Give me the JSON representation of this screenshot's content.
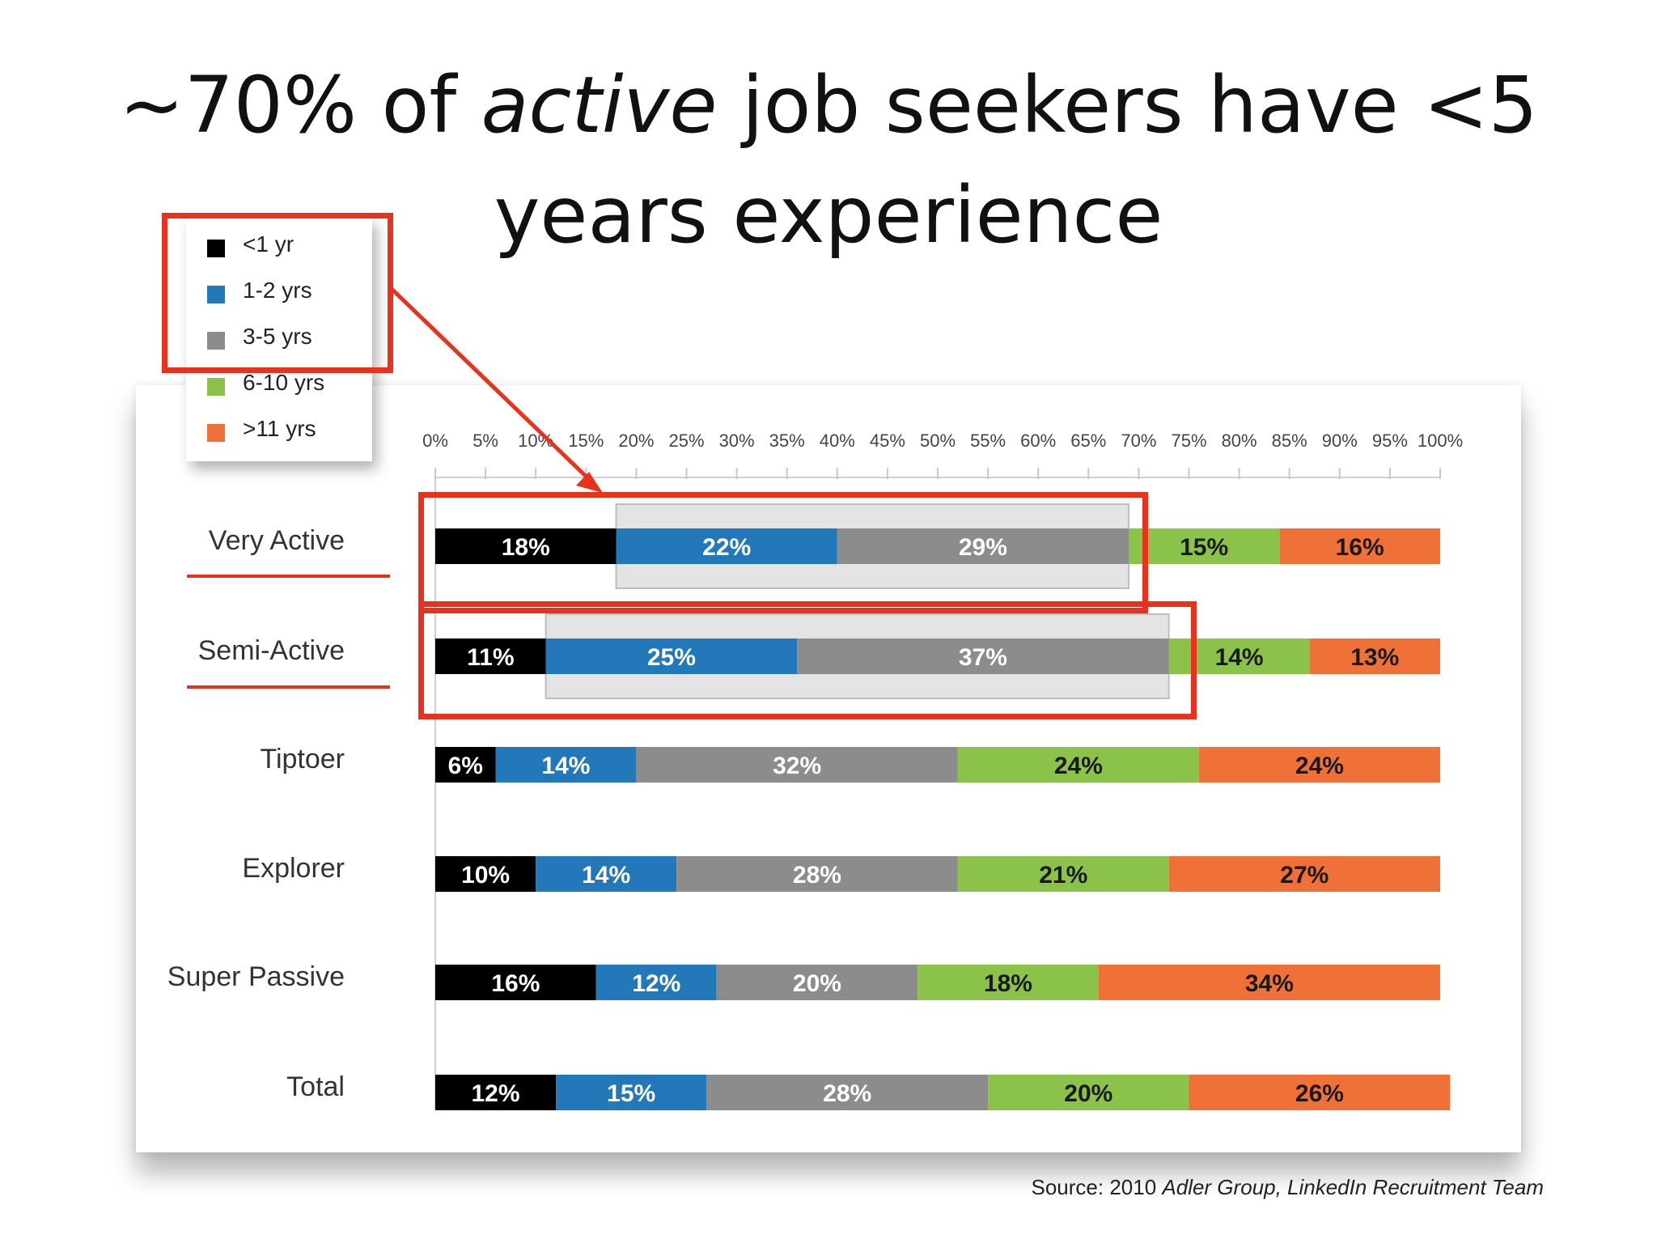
{
  "title": {
    "line1_pre": "~70% of ",
    "line1_em": "active",
    "line1_post": " job seekers have <5",
    "line2": "years experience"
  },
  "source": {
    "prefix": "Source: 2010 ",
    "italic": "Adler Group, LinkedIn Recruitment Team"
  },
  "chart_data": {
    "type": "bar",
    "stacked": true,
    "orientation": "horizontal",
    "categories": [
      "Very Active",
      "Semi-Active",
      "Tiptoer",
      "Explorer",
      "Super Passive",
      "Total"
    ],
    "series": [
      {
        "name": "<1 yr",
        "color": "#000000",
        "values": [
          18,
          11,
          6,
          10,
          16,
          12
        ]
      },
      {
        "name": "1-2 yrs",
        "color": "#2378b9",
        "values": [
          22,
          25,
          14,
          14,
          12,
          15
        ]
      },
      {
        "name": "3-5 yrs",
        "color": "#8c8c8c",
        "values": [
          29,
          37,
          32,
          28,
          20,
          28
        ]
      },
      {
        "name": "6-10 yrs",
        "color": "#8bc34a",
        "values": [
          15,
          14,
          24,
          21,
          18,
          20
        ]
      },
      {
        "name": ">11 yrs",
        "color": "#f07138",
        "values": [
          16,
          13,
          24,
          27,
          34,
          26
        ]
      }
    ],
    "xticks": [
      "0%",
      "5%",
      "10%",
      "15%",
      "20%",
      "25%",
      "30%",
      "35%",
      "40%",
      "45%",
      "50%",
      "55%",
      "60%",
      "65%",
      "70%",
      "75%",
      "80%",
      "85%",
      "90%",
      "95%",
      "100%"
    ],
    "xlim": [
      0,
      100
    ],
    "highlighted_categories": [
      "Very Active",
      "Semi-Active"
    ],
    "highlighted_series": [
      "<1 yr",
      "1-2 yrs",
      "3-5 yrs"
    ],
    "legend_position": "top-left"
  }
}
